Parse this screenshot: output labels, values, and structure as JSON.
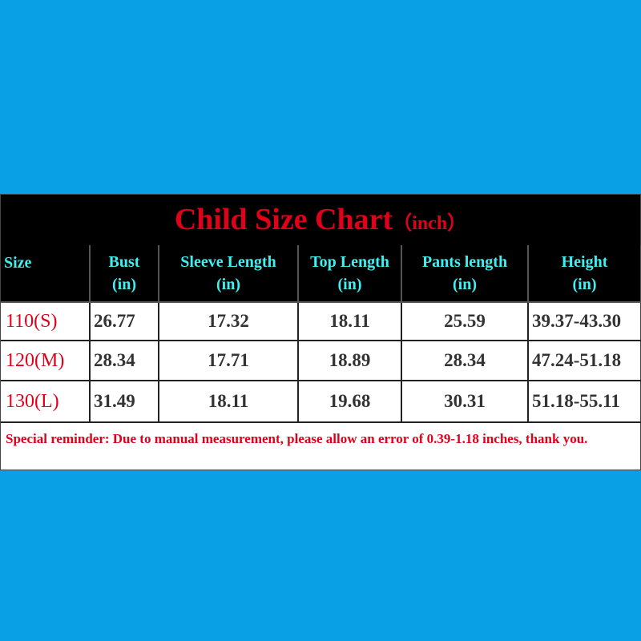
{
  "title": {
    "main": "Child Size Chart",
    "unit": "（inch）"
  },
  "table": {
    "header": [
      [
        "Size"
      ],
      [
        "Bust",
        "(in)"
      ],
      [
        "Sleeve Length",
        "(in)"
      ],
      [
        "Top Length",
        "(in)"
      ],
      [
        "Pants length",
        "(in)"
      ],
      [
        "Height",
        "(in)"
      ]
    ],
    "rows": [
      [
        "110(S)",
        "26.77",
        "17.32",
        "18.11",
        "25.59",
        "39.37-43.30"
      ],
      [
        "120(M)",
        "28.34",
        "17.71",
        "18.89",
        "28.34",
        "47.24-51.18"
      ],
      [
        "130(L)",
        "31.49",
        "18.11",
        "19.68",
        "30.31",
        "51.18-55.11"
      ]
    ]
  },
  "note": "Special reminder: Due to manual measurement, please allow an error of 0.39-1.18 inches, thank you."
}
